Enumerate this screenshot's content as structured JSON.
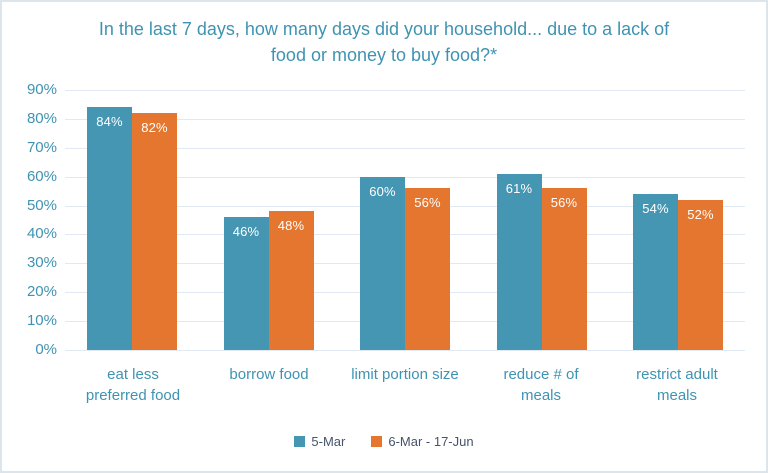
{
  "title": "In the last 7 days, how many days did your household... due to a lack of food or money to buy food?*",
  "colors": {
    "series1": "#4496b3",
    "series2": "#e5762f",
    "axis_text": "#3f93b2",
    "title_text": "#3f93b2",
    "gridline": "#e1eaf2",
    "legend_text": "#44546a",
    "bar_label_text": "#ffffff",
    "panel_border": "#dde5ec",
    "background": "#ffffff"
  },
  "legend": [
    {
      "name": "5-Mar",
      "color": "#4496b3"
    },
    {
      "name": "6-Mar - 17-Jun",
      "color": "#e5762f"
    }
  ],
  "chart_data": {
    "type": "bar",
    "title": "In the last 7 days, how many days did your household... due to a lack of food or money to buy food?*",
    "categories": [
      "eat less preferred food",
      "borrow food",
      "limit portion size",
      "reduce # of meals",
      "restrict adult meals"
    ],
    "categories_display": [
      "eat less\npreferred food",
      "borrow food",
      "limit portion size",
      "reduce # of\nmeals",
      "restrict adult\nmeals"
    ],
    "series": [
      {
        "name": "5-Mar",
        "color": "#4496b3",
        "values": [
          84,
          46,
          60,
          61,
          54
        ]
      },
      {
        "name": "6-Mar - 17-Jun",
        "color": "#e5762f",
        "values": [
          82,
          48,
          56,
          56,
          52
        ]
      }
    ],
    "value_suffix": "%",
    "data_labels": "inside-top",
    "xlabel": "",
    "ylabel": "",
    "ylim": [
      0,
      90
    ],
    "ytick_step": 10,
    "yticks": [
      "0%",
      "10%",
      "20%",
      "30%",
      "40%",
      "50%",
      "60%",
      "70%",
      "80%",
      "90%"
    ],
    "grid": true,
    "legend_position": "bottom"
  }
}
